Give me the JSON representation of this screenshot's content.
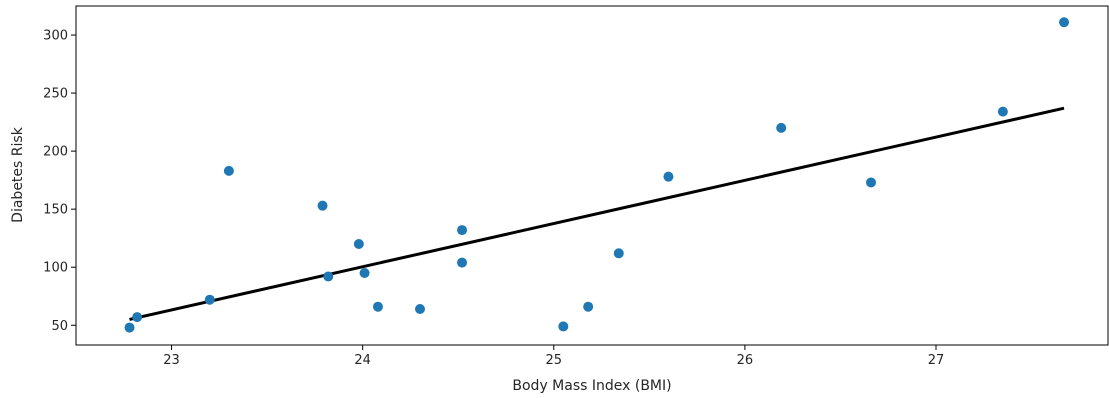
{
  "chart_data": {
    "type": "scatter",
    "title": "",
    "xlabel": "Body Mass Index (BMI)",
    "ylabel": "Diabetes Risk",
    "xlim": [
      22.5,
      27.9
    ],
    "ylim": [
      33,
      325
    ],
    "xticks": [
      23,
      24,
      25,
      26,
      27
    ],
    "yticks": [
      50,
      100,
      150,
      200,
      250,
      300
    ],
    "grid": false,
    "legend": "none",
    "series": [
      {
        "type": "scatter",
        "color": "#1f77b4",
        "points": [
          [
            22.78,
            48
          ],
          [
            22.82,
            57
          ],
          [
            23.2,
            72
          ],
          [
            23.3,
            183
          ],
          [
            23.79,
            153
          ],
          [
            23.82,
            92
          ],
          [
            23.98,
            120
          ],
          [
            24.01,
            95
          ],
          [
            24.08,
            66
          ],
          [
            24.3,
            64
          ],
          [
            24.52,
            132
          ],
          [
            24.52,
            104
          ],
          [
            25.05,
            49
          ],
          [
            25.18,
            66
          ],
          [
            25.34,
            112
          ],
          [
            25.6,
            178
          ],
          [
            26.19,
            220
          ],
          [
            26.66,
            173
          ],
          [
            27.35,
            234
          ],
          [
            27.67,
            311
          ]
        ]
      },
      {
        "type": "line",
        "color": "#000000",
        "points": [
          [
            22.78,
            55
          ],
          [
            27.67,
            237
          ]
        ]
      }
    ]
  }
}
